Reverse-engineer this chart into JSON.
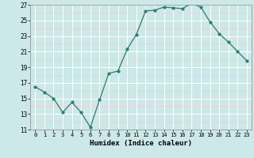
{
  "x": [
    0,
    1,
    2,
    3,
    4,
    5,
    6,
    7,
    8,
    9,
    10,
    11,
    12,
    13,
    14,
    15,
    16,
    17,
    18,
    19,
    20,
    21,
    22,
    23
  ],
  "y": [
    16.5,
    15.8,
    15.0,
    13.2,
    14.5,
    13.2,
    11.3,
    14.8,
    18.2,
    18.5,
    21.3,
    23.2,
    26.2,
    26.3,
    26.7,
    26.6,
    26.5,
    27.2,
    26.7,
    24.8,
    23.3,
    22.2,
    21.0,
    19.8
  ],
  "xlabel": "Humidex (Indice chaleur)",
  "ylim": [
    11,
    27
  ],
  "xlim": [
    -0.5,
    23.5
  ],
  "yticks": [
    11,
    13,
    15,
    17,
    19,
    21,
    23,
    25,
    27
  ],
  "xticks": [
    0,
    1,
    2,
    3,
    4,
    5,
    6,
    7,
    8,
    9,
    10,
    11,
    12,
    13,
    14,
    15,
    16,
    17,
    18,
    19,
    20,
    21,
    22,
    23
  ],
  "line_color": "#2e7d6e",
  "marker_color": "#2e7d6e",
  "bg_color": "#cce8e8",
  "grid_color": "#ffffff",
  "grid_minor_color": "#f2d0d0"
}
